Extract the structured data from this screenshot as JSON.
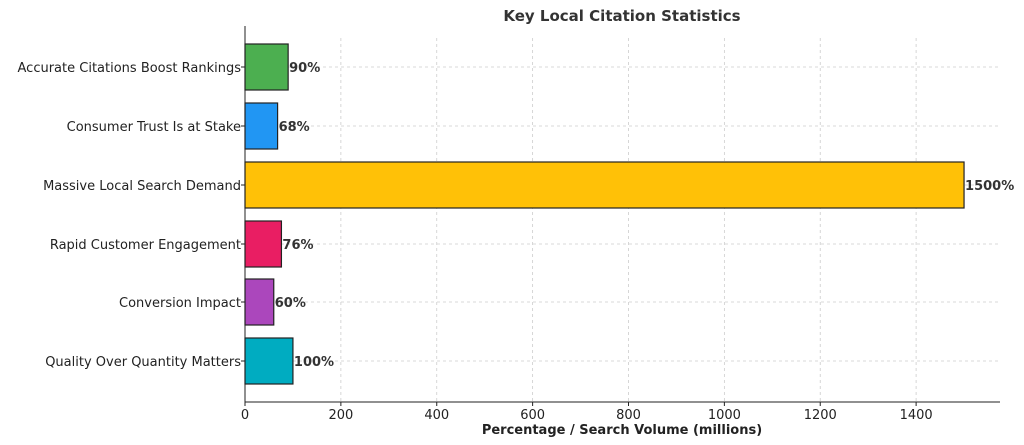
{
  "chart_data": {
    "type": "bar",
    "orientation": "horizontal",
    "title": "Key Local Citation Statistics",
    "xlabel": "Percentage / Search Volume (millions)",
    "ylabel": "",
    "categories": [
      "Accurate Citations Boost Rankings",
      "Consumer Trust Is at Stake",
      "Massive Local Search Demand",
      "Rapid Customer Engagement",
      "Conversion Impact",
      "Quality Over Quantity Matters"
    ],
    "values": [
      90,
      68,
      1500,
      76,
      60,
      100
    ],
    "data_labels": [
      "90%",
      "68%",
      "1500%",
      "76%",
      "60%",
      "100%"
    ],
    "colors": [
      "#4caf50",
      "#2196f3",
      "#ffc107",
      "#e91e63",
      "#ab47bc",
      "#00acc1"
    ],
    "xlim": [
      0,
      1575
    ],
    "xticks": [
      0,
      200,
      400,
      600,
      800,
      1000,
      1200,
      1400
    ],
    "grid": true,
    "legend": "none"
  }
}
